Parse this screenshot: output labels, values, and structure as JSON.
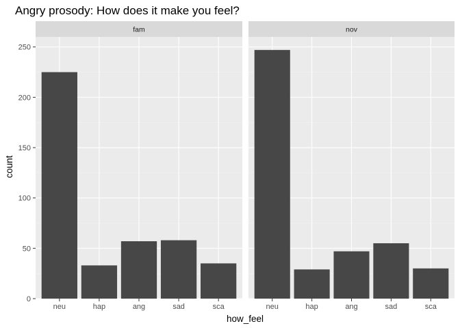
{
  "chart_data": {
    "type": "bar",
    "title": "Angry prosody: How does it make you feel?",
    "xlabel": "how_feel",
    "ylabel": "count",
    "ylim": [
      0,
      260
    ],
    "yticks": [
      0,
      50,
      100,
      150,
      200,
      250
    ],
    "grid": true,
    "categories": [
      "neu",
      "hap",
      "ang",
      "sad",
      "sca"
    ],
    "facets": [
      {
        "label": "fam",
        "values": [
          225,
          33,
          57,
          58,
          35
        ]
      },
      {
        "label": "nov",
        "values": [
          247,
          29,
          47,
          55,
          30
        ]
      }
    ],
    "colors": {
      "bar": "#474747",
      "panel": "#ebebeb",
      "strip": "#d9d9d9",
      "grid_major": "#ffffff",
      "grid_minor": "#f3f3f3"
    }
  }
}
